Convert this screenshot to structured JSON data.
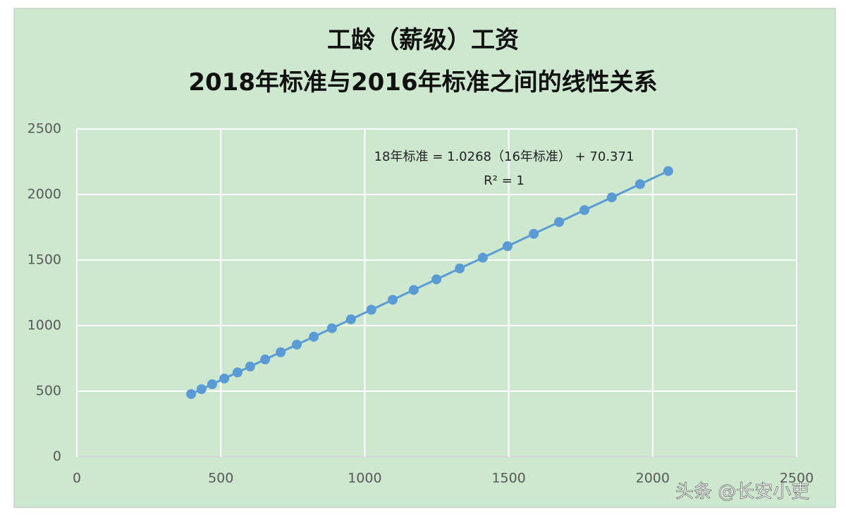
{
  "chart_data": {
    "type": "scatter",
    "title": "工龄（薪级）工资",
    "subtitle": "2018年标准与2016年标准之间的线性关系",
    "annotations": [
      "18年标准 = 1.0268（16年标准） + 70.371",
      "R² = 1"
    ],
    "watermark": "头条 @长安小吏",
    "series": [
      {
        "color": "#5b9bd5",
        "x": [
          397,
          433,
          470,
          512,
          558,
          602,
          654,
          708,
          764,
          823,
          886,
          952,
          1023,
          1097,
          1170,
          1249,
          1330,
          1410,
          1496,
          1587,
          1675,
          1763,
          1858,
          1956,
          2054
        ],
        "values": [
          478,
          515,
          553,
          596,
          643,
          688,
          742,
          797,
          855,
          915,
          980,
          1048,
          1121,
          1197,
          1272,
          1353,
          1436,
          1518,
          1606,
          1700,
          1790,
          1881,
          1978,
          2079,
          2179
        ]
      }
    ],
    "xlim": [
      0,
      2500
    ],
    "xticks": [
      0,
      500,
      1000,
      1500,
      2000,
      2500
    ],
    "ylim": [
      0,
      2500
    ],
    "yticks": [
      0,
      500,
      1000,
      1500,
      2000,
      2500
    ],
    "grid": true
  }
}
